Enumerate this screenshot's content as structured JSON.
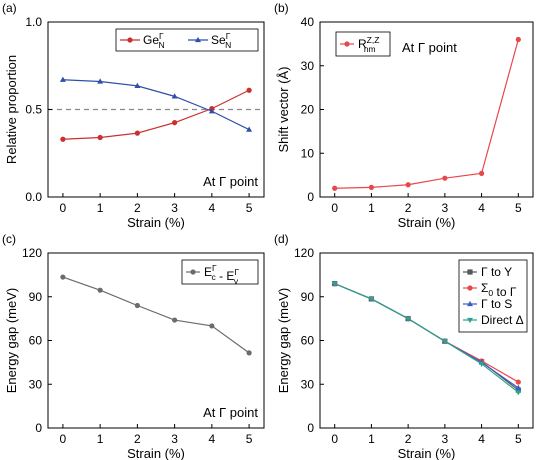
{
  "chart_data": [
    {
      "panel_label": "(a)",
      "type": "line",
      "x": [
        0,
        1,
        2,
        3,
        4,
        5
      ],
      "xlabel": "Strain (%)",
      "ylabel": "Relative proportion",
      "xlim": [
        -0.4,
        5.4
      ],
      "ylim": [
        0.0,
        1.0
      ],
      "xticks": [
        "0",
        "1",
        "2",
        "3",
        "4",
        "5"
      ],
      "yticks": [
        "0.0",
        "0.5",
        "1.0"
      ],
      "yticks_values": [
        0.0,
        0.5,
        1.0
      ],
      "reference_line": {
        "y": 0.5,
        "style": "dashed",
        "color": "#888888"
      },
      "series": [
        {
          "base": "Ge",
          "sup": "Γ",
          "sub": "N",
          "color": "#cc2f2f",
          "marker": "circle",
          "values": [
            0.33,
            0.34,
            0.365,
            0.425,
            0.505,
            0.61
          ]
        },
        {
          "base": "Se",
          "sup": "Γ",
          "sub": "N",
          "color": "#2f4fa8",
          "marker": "triangle",
          "values": [
            0.67,
            0.66,
            0.635,
            0.575,
            0.49,
            0.385
          ]
        }
      ],
      "legend_position": "top-right",
      "legend_layout": "row",
      "annotation": "At Γ point",
      "annotation_position": "bottom-right"
    },
    {
      "panel_label": "(b)",
      "type": "line",
      "x": [
        0,
        1,
        2,
        3,
        4,
        5
      ],
      "xlabel": "Strain (%)",
      "ylabel": "Shift vector (Å)",
      "xlim": [
        -0.4,
        5.4
      ],
      "ylim": [
        0,
        40
      ],
      "xticks": [
        "0",
        "1",
        "2",
        "3",
        "4",
        "5"
      ],
      "yticks": [
        "0",
        "10",
        "20",
        "30",
        "40"
      ],
      "yticks_values": [
        0,
        10,
        20,
        30,
        40
      ],
      "series": [
        {
          "base": "R",
          "sup": "Z,Z",
          "sub": "nm",
          "color": "#e8474c",
          "marker": "circle",
          "values": [
            2.0,
            2.2,
            2.8,
            4.3,
            5.4,
            36.0
          ]
        }
      ],
      "legend_position": "top-left",
      "legend_layout": "column",
      "annotation": "At Γ point",
      "annotation_position": "top-left-beside-legend"
    },
    {
      "panel_label": "(c)",
      "type": "line",
      "x": [
        0,
        1,
        2,
        3,
        4,
        5
      ],
      "xlabel": "Strain (%)",
      "ylabel": "Energy gap (meV)",
      "xlim": [
        -0.4,
        5.4
      ],
      "ylim": [
        0,
        120
      ],
      "xticks": [
        "0",
        "1",
        "2",
        "3",
        "4",
        "5"
      ],
      "yticks": [
        "0",
        "30",
        "60",
        "90",
        "120"
      ],
      "yticks_values": [
        0,
        30,
        60,
        90,
        120
      ],
      "series": [
        {
          "label_parts": [
            {
              "base": "E",
              "sup": "Γ",
              "sub": "c"
            },
            {
              "sep": " - "
            },
            {
              "base": "E",
              "sup": "Γ",
              "sub": "v"
            }
          ],
          "color": "#6b6b6b",
          "marker": "circle",
          "values": [
            103.5,
            94.5,
            84,
            74,
            70,
            51.5
          ]
        }
      ],
      "legend_position": "top-right",
      "legend_layout": "column",
      "annotation": "At Γ point",
      "annotation_position": "bottom-right"
    },
    {
      "panel_label": "(d)",
      "type": "line",
      "x": [
        0,
        1,
        2,
        3,
        4,
        5
      ],
      "xlabel": "Strain (%)",
      "ylabel": "Energy gap (meV)",
      "xlim": [
        -0.4,
        5.4
      ],
      "ylim": [
        0,
        120
      ],
      "xticks": [
        "0",
        "1",
        "2",
        "3",
        "4",
        "5"
      ],
      "yticks": [
        "0",
        "30",
        "60",
        "90",
        "120"
      ],
      "yticks_values": [
        0,
        30,
        60,
        90,
        120
      ],
      "series": [
        {
          "label": "Γ to Y",
          "color": "#555555",
          "marker": "square",
          "values": [
            99,
            88.5,
            75,
            59.5,
            45.5,
            26
          ]
        },
        {
          "label_parts": [
            {
              "base": "Σ",
              "sub": "0"
            },
            {
              "sep": " to Γ"
            }
          ],
          "color": "#e8474c",
          "marker": "circle",
          "values": [
            99,
            88.5,
            75,
            59.5,
            46,
            31.5
          ]
        },
        {
          "label": "Γ to S",
          "color": "#3a5bc7",
          "marker": "triangle",
          "values": [
            99,
            88.5,
            75,
            59.5,
            45,
            27.5
          ]
        },
        {
          "label": "Direct Δ",
          "color": "#2aa58a",
          "marker": "triangle-down",
          "values": [
            99,
            88.5,
            75,
            59.5,
            44,
            24.5
          ]
        }
      ],
      "legend_position": "top-right",
      "legend_layout": "column",
      "annotation": "",
      "annotation_position": ""
    }
  ]
}
